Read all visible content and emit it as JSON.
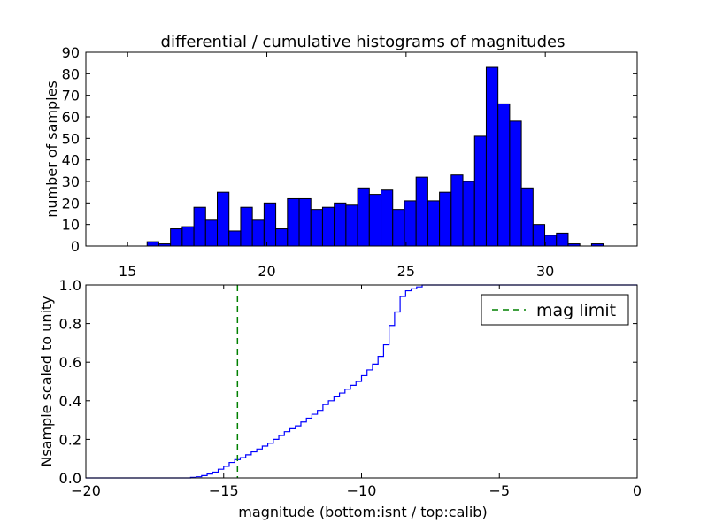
{
  "chart_data": [
    {
      "type": "bar",
      "title": "differential / cumulative histograms of magnitudes",
      "ylabel": "number of samples",
      "xlabel": "",
      "xlim": [
        13.5,
        33.3
      ],
      "ylim": [
        0,
        90
      ],
      "xticks": [
        "15",
        "20",
        "25",
        "30"
      ],
      "xtick_values": [
        15,
        20,
        25,
        30
      ],
      "yticks": [
        "0",
        "10",
        "20",
        "30",
        "40",
        "50",
        "60",
        "70",
        "80",
        "90"
      ],
      "ytick_values": [
        0,
        10,
        20,
        30,
        40,
        50,
        60,
        70,
        80,
        90
      ],
      "bin_start": 15.7,
      "bin_width": 0.42,
      "values": [
        2,
        1,
        8,
        9,
        18,
        12,
        25,
        7,
        18,
        12,
        20,
        8,
        22,
        22,
        17,
        18,
        20,
        19,
        27,
        24,
        26,
        17,
        21,
        32,
        21,
        25,
        33,
        30,
        51,
        83,
        66,
        58,
        27,
        10,
        5,
        6,
        1,
        0,
        1
      ],
      "bar_color": "#0000ff"
    },
    {
      "type": "line",
      "ylabel": "Nsample scaled to unity",
      "xlabel": "magnitude (bottom:isnt / top:calib)",
      "xlim": [
        -20,
        0
      ],
      "ylim": [
        0,
        1
      ],
      "xticks": [
        "−20",
        "−15",
        "−10",
        "−5",
        "0"
      ],
      "xtick_values": [
        -20,
        -15,
        -10,
        -5,
        0
      ],
      "yticks": [
        "0.0",
        "0.2",
        "0.4",
        "0.6",
        "0.8",
        "1.0"
      ],
      "ytick_values": [
        0,
        0.2,
        0.4,
        0.6,
        0.8,
        1.0
      ],
      "series": [
        {
          "name": "cumulative",
          "color": "#0000ff",
          "step_x": [
            -20,
            -16.2,
            -16.0,
            -15.8,
            -15.6,
            -15.4,
            -15.2,
            -15.0,
            -14.8,
            -14.6,
            -14.4,
            -14.2,
            -14.0,
            -13.8,
            -13.6,
            -13.4,
            -13.2,
            -13.0,
            -12.8,
            -12.6,
            -12.4,
            -12.2,
            -12.0,
            -11.8,
            -11.6,
            -11.4,
            -11.2,
            -11.0,
            -10.8,
            -10.6,
            -10.4,
            -10.2,
            -10.0,
            -9.8,
            -9.6,
            -9.4,
            -9.2,
            -9.0,
            -8.8,
            -8.6,
            -8.4,
            -8.2,
            -8.0,
            -7.8,
            -7.6
          ],
          "step_y": [
            0,
            0.003,
            0.006,
            0.012,
            0.02,
            0.03,
            0.045,
            0.06,
            0.08,
            0.095,
            0.105,
            0.12,
            0.135,
            0.15,
            0.165,
            0.18,
            0.2,
            0.22,
            0.24,
            0.255,
            0.27,
            0.29,
            0.31,
            0.33,
            0.35,
            0.38,
            0.4,
            0.42,
            0.44,
            0.46,
            0.48,
            0.5,
            0.53,
            0.56,
            0.59,
            0.63,
            0.69,
            0.79,
            0.86,
            0.94,
            0.97,
            0.98,
            0.99,
            1.0,
            1.0
          ]
        },
        {
          "name": "mag limit",
          "color": "#008000",
          "style": "dashed",
          "x": -14.5
        }
      ],
      "legend": {
        "entries": [
          "mag limit"
        ],
        "placement": "top-right"
      }
    }
  ]
}
